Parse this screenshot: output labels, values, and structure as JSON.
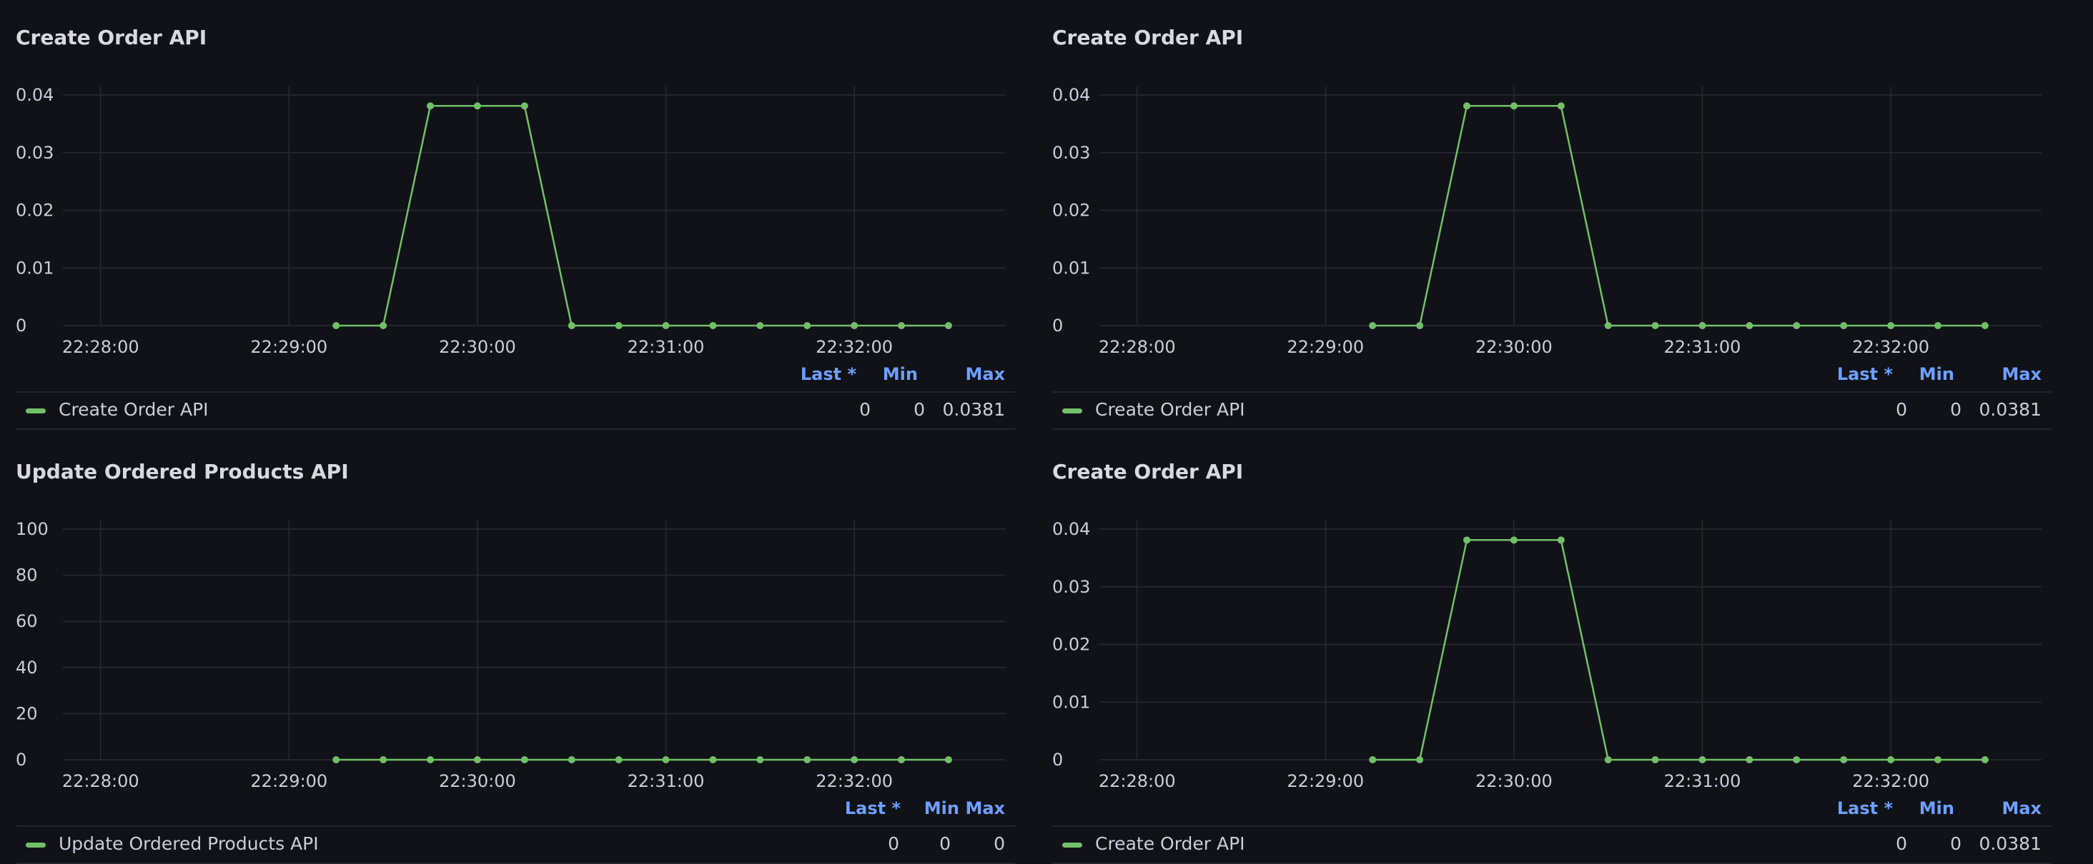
{
  "colors": {
    "background": "#111217",
    "series": "#73bf69",
    "grid": "#24262d",
    "text": "#ccccdc",
    "legend_header": "#6e9fff"
  },
  "legend_headers": {
    "last": "Last *",
    "min": "Min",
    "max": "Max"
  },
  "panels": [
    {
      "title": "Create Order API",
      "legend": {
        "name": "Create Order API",
        "last": "0",
        "min": "0",
        "max": "0.0381"
      }
    },
    {
      "title": "Create Order API",
      "legend": {
        "name": "Create Order API",
        "last": "0",
        "min": "0",
        "max": "0.0381"
      }
    },
    {
      "title": "Update Ordered Products API",
      "legend": {
        "name": "Update Ordered Products API",
        "last": "0",
        "min": "0",
        "max": "0"
      }
    },
    {
      "title": "Create Order API",
      "legend": {
        "name": "Create Order API",
        "last": "0",
        "min": "0",
        "max": "0.0381"
      }
    }
  ],
  "chart_data": [
    {
      "type": "line",
      "title": "Create Order API",
      "x_ticks": [
        "22:28:00",
        "22:29:00",
        "22:30:00",
        "22:31:00",
        "22:32:00"
      ],
      "y_ticks": [
        "0",
        "0.01",
        "0.02",
        "0.03",
        "0.04"
      ],
      "ylim": [
        0,
        0.04
      ],
      "grid": true,
      "legend_position": "bottom",
      "series": [
        {
          "name": "Create Order API",
          "x": [
            "22:29:15",
            "22:29:30",
            "22:29:45",
            "22:30:00",
            "22:30:15",
            "22:30:30",
            "22:30:45",
            "22:31:00",
            "22:31:15",
            "22:31:30",
            "22:31:45",
            "22:32:00",
            "22:32:15",
            "22:32:30"
          ],
          "values": [
            0,
            0,
            0.0381,
            0.0381,
            0.0381,
            0,
            0,
            0,
            0,
            0,
            0,
            0,
            0,
            0
          ]
        }
      ]
    },
    {
      "type": "line",
      "title": "Create Order API",
      "x_ticks": [
        "22:28:00",
        "22:29:00",
        "22:30:00",
        "22:31:00",
        "22:32:00"
      ],
      "y_ticks": [
        "0",
        "0.01",
        "0.02",
        "0.03",
        "0.04"
      ],
      "ylim": [
        0,
        0.04
      ],
      "grid": true,
      "legend_position": "bottom",
      "series": [
        {
          "name": "Create Order API",
          "x": [
            "22:29:15",
            "22:29:30",
            "22:29:45",
            "22:30:00",
            "22:30:15",
            "22:30:30",
            "22:30:45",
            "22:31:00",
            "22:31:15",
            "22:31:30",
            "22:31:45",
            "22:32:00",
            "22:32:15",
            "22:32:30"
          ],
          "values": [
            0,
            0,
            0.0381,
            0.0381,
            0.0381,
            0,
            0,
            0,
            0,
            0,
            0,
            0,
            0,
            0
          ]
        }
      ]
    },
    {
      "type": "line",
      "title": "Update Ordered Products API",
      "x_ticks": [
        "22:28:00",
        "22:29:00",
        "22:30:00",
        "22:31:00",
        "22:32:00"
      ],
      "y_ticks": [
        "0",
        "20",
        "40",
        "60",
        "80",
        "100"
      ],
      "ylim": [
        0,
        100
      ],
      "grid": true,
      "legend_position": "bottom",
      "series": [
        {
          "name": "Update Ordered Products API",
          "x": [
            "22:29:15",
            "22:29:30",
            "22:29:45",
            "22:30:00",
            "22:30:15",
            "22:30:30",
            "22:30:45",
            "22:31:00",
            "22:31:15",
            "22:31:30",
            "22:31:45",
            "22:32:00",
            "22:32:15",
            "22:32:30"
          ],
          "values": [
            0,
            0,
            0,
            0,
            0,
            0,
            0,
            0,
            0,
            0,
            0,
            0,
            0,
            0
          ]
        }
      ]
    },
    {
      "type": "line",
      "title": "Create Order API",
      "x_ticks": [
        "22:28:00",
        "22:29:00",
        "22:30:00",
        "22:31:00",
        "22:32:00"
      ],
      "y_ticks": [
        "0",
        "0.01",
        "0.02",
        "0.03",
        "0.04"
      ],
      "ylim": [
        0,
        0.04
      ],
      "grid": true,
      "legend_position": "bottom",
      "series": [
        {
          "name": "Create Order API",
          "x": [
            "22:29:15",
            "22:29:30",
            "22:29:45",
            "22:30:00",
            "22:30:15",
            "22:30:30",
            "22:30:45",
            "22:31:00",
            "22:31:15",
            "22:31:30",
            "22:31:45",
            "22:32:00",
            "22:32:15",
            "22:32:30"
          ],
          "values": [
            0,
            0,
            0.0381,
            0.0381,
            0.0381,
            0,
            0,
            0,
            0,
            0,
            0,
            0,
            0,
            0
          ]
        }
      ]
    }
  ]
}
